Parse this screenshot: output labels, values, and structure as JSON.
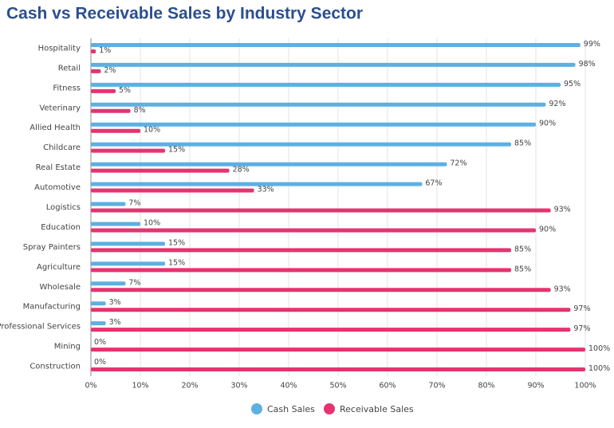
{
  "chart_data": {
    "type": "bar",
    "orientation": "horizontal",
    "title": "Cash vs Receivable Sales by Industry Sector",
    "categories": [
      "Hospitality",
      "Retail",
      "Fitness",
      "Veterinary",
      "Allied Health",
      "Childcare",
      "Real Estate",
      "Automotive",
      "Logistics",
      "Education",
      "Spray Painters",
      "Agriculture",
      "Wholesale",
      "Manufacturing",
      "Professional Services",
      "Mining",
      "Construction"
    ],
    "series": [
      {
        "name": "Cash Sales",
        "color": "#5cb0e2",
        "values": [
          99,
          98,
          95,
          92,
          90,
          85,
          72,
          67,
          7,
          10,
          15,
          15,
          7,
          3,
          3,
          0,
          0
        ],
        "value_labels": [
          "99%",
          "98%",
          "95%",
          "92%",
          "90%",
          "85%",
          "72%",
          "67%",
          "7%",
          "10%",
          "15%",
          "15%",
          "7%",
          "3%",
          "3%",
          "0%",
          "0%"
        ]
      },
      {
        "name": "Receivable Sales",
        "color": "#e6336f",
        "values": [
          1,
          2,
          5,
          8,
          10,
          15,
          28,
          33,
          93,
          90,
          85,
          85,
          93,
          97,
          97,
          100,
          100
        ],
        "value_labels": [
          "1%",
          "2%",
          "5%",
          "8%",
          "10%",
          "15%",
          "28%",
          "33%",
          "93%",
          "90%",
          "85%",
          "85%",
          "93%",
          "97%",
          "97%",
          "100%",
          "100%"
        ]
      }
    ],
    "xlim": [
      0,
      100
    ],
    "xticks": [
      {
        "value": 0,
        "label": "0%"
      },
      {
        "value": 10,
        "label": "10%"
      },
      {
        "value": 20,
        "label": "20%"
      },
      {
        "value": 30,
        "label": "30%"
      },
      {
        "value": 40,
        "label": "40%"
      },
      {
        "value": 50,
        "label": "50%"
      },
      {
        "value": 60,
        "label": "60%"
      },
      {
        "value": 70,
        "label": "70%"
      },
      {
        "value": 80,
        "label": "80%"
      },
      {
        "value": 90,
        "label": "90%"
      },
      {
        "value": 100,
        "label": "100%"
      }
    ],
    "grid": true,
    "legend": "bottom"
  }
}
